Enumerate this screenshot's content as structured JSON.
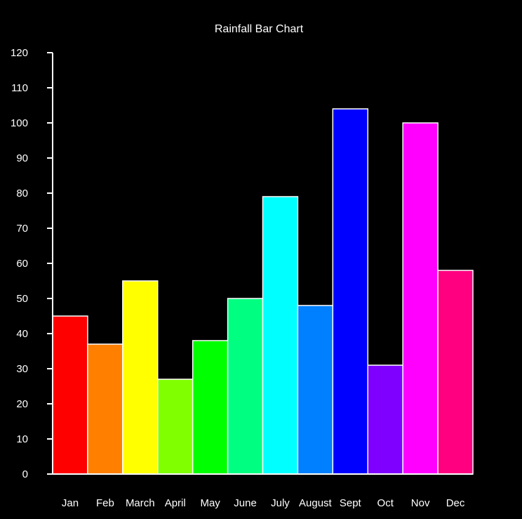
{
  "chart_data": {
    "type": "bar",
    "title": "Rainfall Bar Chart",
    "xlabel": "",
    "ylabel": "",
    "categories": [
      "Jan",
      "Feb",
      "March",
      "April",
      "May",
      "June",
      "July",
      "August",
      "Sept",
      "Oct",
      "Nov",
      "Dec"
    ],
    "values": [
      45,
      37,
      55,
      27,
      38,
      50,
      79,
      48,
      104,
      31,
      100,
      58
    ],
    "colors": [
      "#ff0000",
      "#ff8000",
      "#ffff00",
      "#80ff00",
      "#00ff00",
      "#00ff80",
      "#00ffff",
      "#0080ff",
      "#0000ff",
      "#8000ff",
      "#ff00ff",
      "#ff0080"
    ],
    "ylim": [
      0,
      120
    ],
    "yticks": [
      0,
      10,
      20,
      30,
      40,
      50,
      60,
      70,
      80,
      90,
      100,
      110,
      120
    ],
    "grid": false,
    "legend": "none",
    "background": "#000000",
    "foreground": "#ffffff"
  }
}
